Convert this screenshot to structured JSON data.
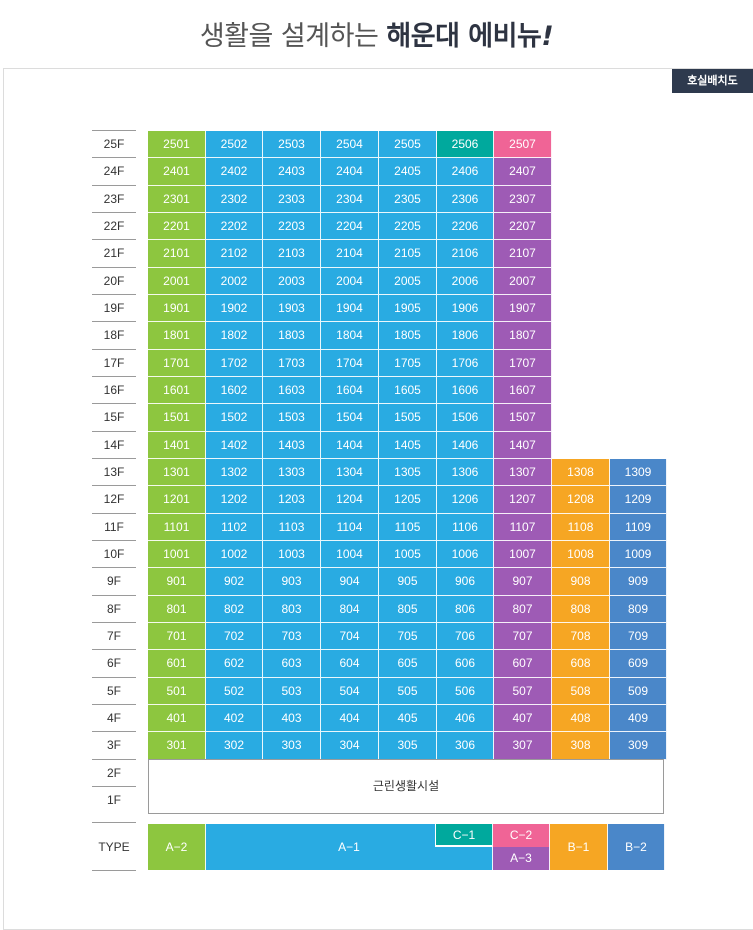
{
  "header": {
    "title_light": "생활을 설계하는",
    "title_bold": "해운대 에비뉴",
    "title_mark": "!"
  },
  "badge": "호실배치도",
  "colors": {
    "A-2": "#8dc63f",
    "A-1": "#29abe2",
    "C-1": "#00a99d",
    "C-2": "#f06496",
    "A-3": "#9e5bb5",
    "B-1": "#f6a623",
    "B-2": "#4a87c9"
  },
  "floors": [
    "25F",
    "24F",
    "23F",
    "22F",
    "21F",
    "20F",
    "19F",
    "18F",
    "17F",
    "16F",
    "15F",
    "14F",
    "13F",
    "12F",
    "11F",
    "10F",
    "9F",
    "8F",
    "7F",
    "6F",
    "5F",
    "4F",
    "3F",
    "2F",
    "1F"
  ],
  "units": [
    [
      "2501",
      "2502",
      "2503",
      "2504",
      "2505",
      "2506",
      "2507"
    ],
    [
      "2401",
      "2402",
      "2403",
      "2404",
      "2405",
      "2406",
      "2407"
    ],
    [
      "2301",
      "2302",
      "2303",
      "2304",
      "2305",
      "2306",
      "2307"
    ],
    [
      "2201",
      "2202",
      "2203",
      "2204",
      "2205",
      "2206",
      "2207"
    ],
    [
      "2101",
      "2102",
      "2103",
      "2104",
      "2105",
      "2106",
      "2107"
    ],
    [
      "2001",
      "2002",
      "2003",
      "2004",
      "2005",
      "2006",
      "2007"
    ],
    [
      "1901",
      "1902",
      "1903",
      "1904",
      "1905",
      "1906",
      "1907"
    ],
    [
      "1801",
      "1802",
      "1803",
      "1804",
      "1805",
      "1806",
      "1807"
    ],
    [
      "1701",
      "1702",
      "1703",
      "1704",
      "1705",
      "1706",
      "1707"
    ],
    [
      "1601",
      "1602",
      "1603",
      "1604",
      "1605",
      "1606",
      "1607"
    ],
    [
      "1501",
      "1502",
      "1503",
      "1504",
      "1505",
      "1506",
      "1507"
    ],
    [
      "1401",
      "1402",
      "1403",
      "1404",
      "1405",
      "1406",
      "1407"
    ],
    [
      "1301",
      "1302",
      "1303",
      "1304",
      "1305",
      "1306",
      "1307",
      "1308",
      "1309"
    ],
    [
      "1201",
      "1202",
      "1203",
      "1204",
      "1205",
      "1206",
      "1207",
      "1208",
      "1209"
    ],
    [
      "1101",
      "1102",
      "1103",
      "1104",
      "1105",
      "1106",
      "1107",
      "1108",
      "1109"
    ],
    [
      "1001",
      "1002",
      "1003",
      "1004",
      "1005",
      "1006",
      "1007",
      "1008",
      "1009"
    ],
    [
      "901",
      "902",
      "903",
      "904",
      "905",
      "906",
      "907",
      "908",
      "909"
    ],
    [
      "801",
      "802",
      "803",
      "804",
      "805",
      "806",
      "807",
      "808",
      "809"
    ],
    [
      "701",
      "702",
      "703",
      "704",
      "705",
      "706",
      "707",
      "708",
      "709"
    ],
    [
      "601",
      "602",
      "603",
      "604",
      "605",
      "606",
      "607",
      "608",
      "609"
    ],
    [
      "501",
      "502",
      "503",
      "504",
      "505",
      "506",
      "507",
      "508",
      "509"
    ],
    [
      "401",
      "402",
      "403",
      "404",
      "405",
      "406",
      "407",
      "408",
      "409"
    ],
    [
      "301",
      "302",
      "303",
      "304",
      "305",
      "306",
      "307",
      "308",
      "309"
    ]
  ],
  "column_types": [
    "A-2",
    "A-1",
    "A-1",
    "A-1",
    "A-1",
    "A-1",
    "A-3",
    "B-1",
    "B-2"
  ],
  "special_units": {
    "2506": "C-1",
    "2507": "C-2"
  },
  "facility_label": "근린생활시설",
  "type_row": {
    "label": "TYPE",
    "a2": "A−2",
    "a1": "A−1",
    "c1": "C−1",
    "c2": "C−2",
    "a3": "A−3",
    "b1": "B−1",
    "b2": "B−2"
  }
}
